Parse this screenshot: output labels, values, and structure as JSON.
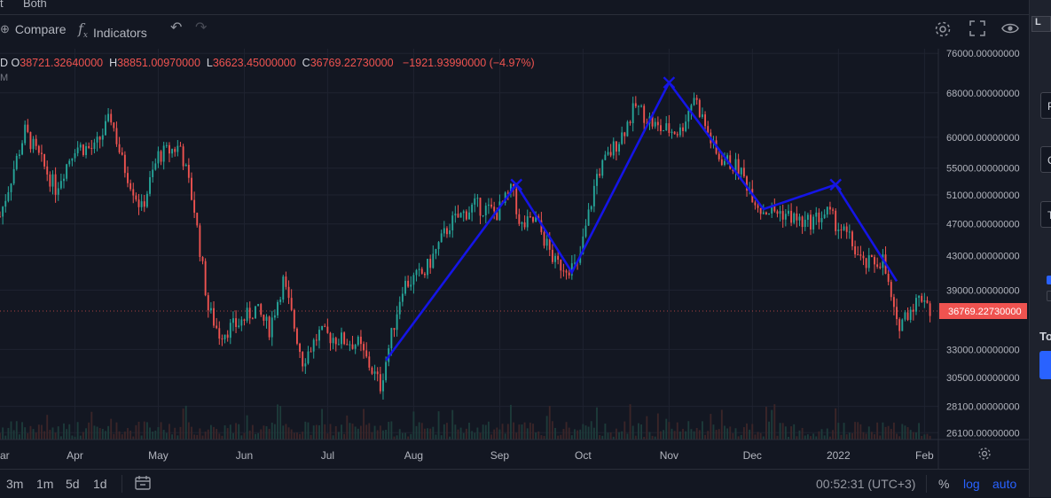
{
  "top_strip": {
    "left_fragment": "t",
    "right_fragment": "Both"
  },
  "toolbar": {
    "compare_label": "Compare",
    "indicators_label": "Indicators"
  },
  "legend": {
    "symbol_fragment": "D",
    "o_key": "O",
    "o_val": "38721.32640000",
    "h_key": "H",
    "h_val": "38851.00970000",
    "l_key": "L",
    "l_val": "36623.45000000",
    "c_key": "C",
    "c_val": "36769.22730000",
    "change": "−1921.93990000 (−4.97%)",
    "sub_fragment": "M"
  },
  "price_axis": {
    "ticks": [
      "76000.00000000",
      "68000.00000000",
      "60000.00000000",
      "55000.00000000",
      "51000.00000000",
      "47000.00000000",
      "43000.00000000",
      "39000.00000000",
      "33000.00000000",
      "30500.00000000",
      "28100.00000000",
      "26100.00000000"
    ],
    "current_price": "36769.22730000"
  },
  "time_axis": {
    "labels": [
      "ar",
      "Apr",
      "May",
      "Jun",
      "Jul",
      "Aug",
      "Sep",
      "Oct",
      "Nov",
      "Dec",
      "2022",
      "Feb"
    ]
  },
  "bottom_bar": {
    "ranges": [
      "3m",
      "1m",
      "5d",
      "1d"
    ],
    "clock": "00:52:31 (UTC+3)",
    "percent": "%",
    "log": "log",
    "auto": "auto"
  },
  "right_panel": {
    "items": [
      "L",
      "P",
      "C",
      "T",
      "To"
    ]
  },
  "colors": {
    "background": "#131722",
    "up": "#26a69a",
    "down": "#ef5350",
    "pattern_line": "#1515e6",
    "accent": "#2962ff"
  },
  "chart_data": {
    "type": "candlestick",
    "scale": "log",
    "ylim": [
      25600,
      77000
    ],
    "x_range": [
      "2021-03-05",
      "2022-02-06"
    ],
    "x_ticks": [
      "ar",
      "Apr",
      "May",
      "Jun",
      "Jul",
      "Aug",
      "Sep",
      "Oct",
      "Nov",
      "Dec",
      "2022",
      "Feb"
    ],
    "price_path": [
      {
        "date": "2021-03-05",
        "price": 48000
      },
      {
        "date": "2021-03-10",
        "price": 55000
      },
      {
        "date": "2021-03-14",
        "price": 61000
      },
      {
        "date": "2021-03-25",
        "price": 52000
      },
      {
        "date": "2021-04-01",
        "price": 58500
      },
      {
        "date": "2021-04-08",
        "price": 58000
      },
      {
        "date": "2021-04-14",
        "price": 63500
      },
      {
        "date": "2021-04-18",
        "price": 56000
      },
      {
        "date": "2021-04-25",
        "price": 49000
      },
      {
        "date": "2021-05-01",
        "price": 57000
      },
      {
        "date": "2021-05-09",
        "price": 58500
      },
      {
        "date": "2021-05-14",
        "price": 49000
      },
      {
        "date": "2021-05-19",
        "price": 37000
      },
      {
        "date": "2021-05-23",
        "price": 34500
      },
      {
        "date": "2021-05-30",
        "price": 35500
      },
      {
        "date": "2021-06-05",
        "price": 37000
      },
      {
        "date": "2021-06-10",
        "price": 35000
      },
      {
        "date": "2021-06-15",
        "price": 40000
      },
      {
        "date": "2021-06-22",
        "price": 32000
      },
      {
        "date": "2021-06-28",
        "price": 34500
      },
      {
        "date": "2021-07-05",
        "price": 34000
      },
      {
        "date": "2021-07-12",
        "price": 33500
      },
      {
        "date": "2021-07-20",
        "price": 29800
      },
      {
        "date": "2021-07-28",
        "price": 39500
      },
      {
        "date": "2021-08-05",
        "price": 41000
      },
      {
        "date": "2021-08-14",
        "price": 47000
      },
      {
        "date": "2021-08-23",
        "price": 49500
      },
      {
        "date": "2021-08-31",
        "price": 48500
      },
      {
        "date": "2021-09-06",
        "price": 52000
      },
      {
        "date": "2021-09-08",
        "price": 46500
      },
      {
        "date": "2021-09-14",
        "price": 47500
      },
      {
        "date": "2021-09-21",
        "price": 42000
      },
      {
        "date": "2021-09-29",
        "price": 41500
      },
      {
        "date": "2021-10-06",
        "price": 54000
      },
      {
        "date": "2021-10-15",
        "price": 60500
      },
      {
        "date": "2021-10-20",
        "price": 65500
      },
      {
        "date": "2021-10-28",
        "price": 61500
      },
      {
        "date": "2021-11-05",
        "price": 61000
      },
      {
        "date": "2021-11-10",
        "price": 67500
      },
      {
        "date": "2021-11-18",
        "price": 57000
      },
      {
        "date": "2021-11-26",
        "price": 55000
      },
      {
        "date": "2021-12-04",
        "price": 49000
      },
      {
        "date": "2021-12-12",
        "price": 48500
      },
      {
        "date": "2021-12-20",
        "price": 47000
      },
      {
        "date": "2021-12-28",
        "price": 48500
      },
      {
        "date": "2022-01-05",
        "price": 45000
      },
      {
        "date": "2022-01-10",
        "price": 41800
      },
      {
        "date": "2022-01-17",
        "price": 42500
      },
      {
        "date": "2022-01-22",
        "price": 35200
      },
      {
        "date": "2022-01-28",
        "price": 37500
      },
      {
        "date": "2022-02-01",
        "price": 38500
      },
      {
        "date": "2022-02-03",
        "price": 36769
      }
    ],
    "pattern_line": [
      {
        "date": "2021-07-22",
        "price": 32000
      },
      {
        "date": "2021-09-07",
        "price": 52500
      },
      {
        "date": "2021-09-27",
        "price": 41000
      },
      {
        "date": "2021-11-01",
        "price": 70000
      },
      {
        "date": "2021-12-05",
        "price": 49000
      },
      {
        "date": "2021-12-31",
        "price": 52500
      },
      {
        "date": "2022-01-22",
        "price": 40000
      }
    ],
    "cross_markers": [
      {
        "date": "2021-09-07",
        "price": 52500
      },
      {
        "date": "2021-11-01",
        "price": 70000
      },
      {
        "date": "2021-12-31",
        "price": 52500
      }
    ]
  }
}
